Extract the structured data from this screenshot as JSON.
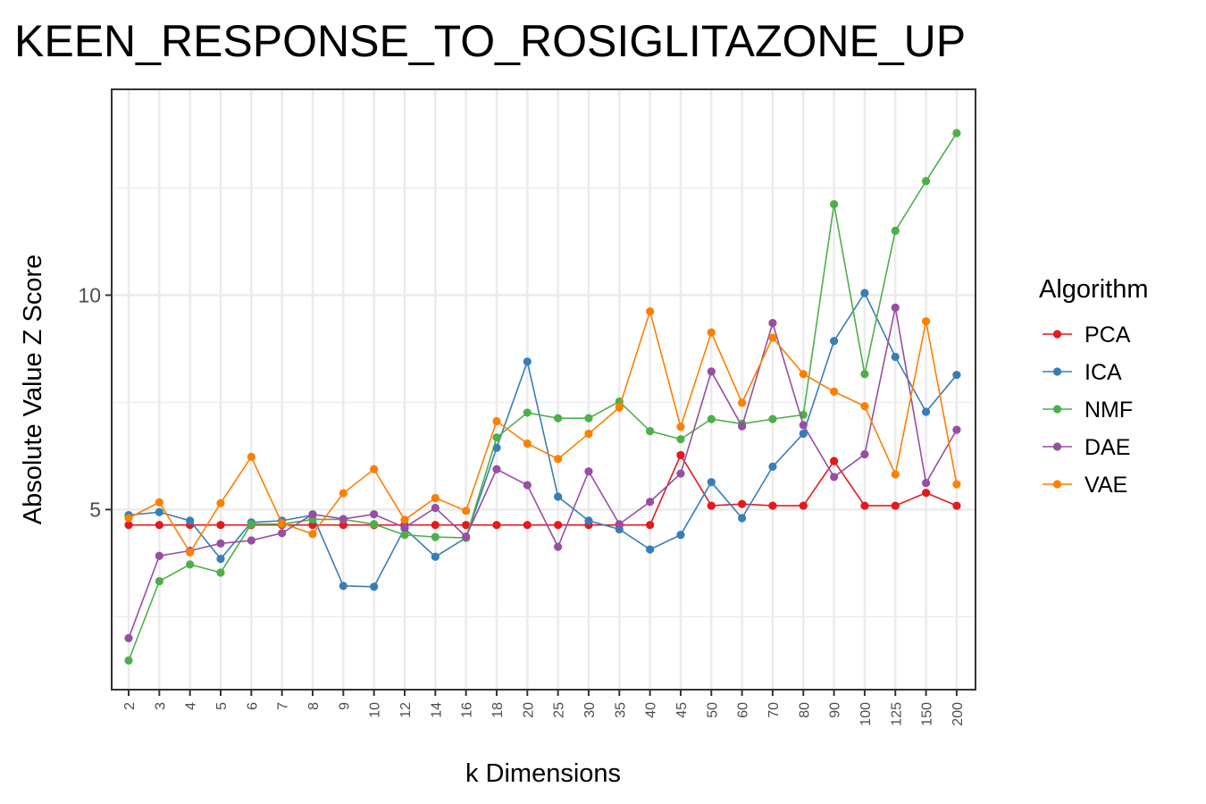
{
  "chart_data": {
    "type": "line",
    "title": "KEEN_RESPONSE_TO_ROSIGLITAZONE_UP",
    "xlabel": "k Dimensions",
    "ylabel": "Absolute Value Z Score",
    "ylim": [
      0.8,
      14.8
    ],
    "yticks": [
      5,
      10
    ],
    "grid": true,
    "legend": {
      "title": "Algorithm",
      "position": "right"
    },
    "categories": [
      "2",
      "3",
      "4",
      "5",
      "6",
      "7",
      "8",
      "9",
      "10",
      "12",
      "14",
      "16",
      "18",
      "20",
      "25",
      "30",
      "35",
      "40",
      "45",
      "50",
      "60",
      "70",
      "80",
      "90",
      "100",
      "125",
      "150",
      "200"
    ],
    "series": [
      {
        "name": "PCA",
        "color": "#E41A1C",
        "values": [
          4.64,
          4.64,
          4.64,
          4.64,
          4.64,
          4.64,
          4.64,
          4.64,
          4.64,
          4.64,
          4.64,
          4.64,
          4.64,
          4.64,
          4.64,
          4.64,
          4.64,
          4.64,
          6.27,
          5.09,
          5.13,
          5.09,
          5.09,
          6.13,
          5.09,
          5.09,
          5.39,
          5.09
        ]
      },
      {
        "name": "ICA",
        "color": "#377EB8",
        "values": [
          4.87,
          4.94,
          4.74,
          3.85,
          4.7,
          4.74,
          4.87,
          3.22,
          3.2,
          4.56,
          3.9,
          4.34,
          6.44,
          8.45,
          5.3,
          4.74,
          4.54,
          4.07,
          4.41,
          5.64,
          4.8,
          6.0,
          6.77,
          8.93,
          10.05,
          8.56,
          7.28,
          8.14
        ]
      },
      {
        "name": "NMF",
        "color": "#4DAF4A",
        "values": [
          1.48,
          3.33,
          3.72,
          3.53,
          4.66,
          4.66,
          4.77,
          4.77,
          4.66,
          4.41,
          4.36,
          4.34,
          6.68,
          7.26,
          7.13,
          7.13,
          7.52,
          6.83,
          6.64,
          7.11,
          7.0,
          7.11,
          7.21,
          12.12,
          8.16,
          11.5,
          12.66,
          13.78
        ]
      },
      {
        "name": "DAE",
        "color": "#984EA3",
        "values": [
          2.0,
          3.92,
          4.04,
          4.21,
          4.28,
          4.45,
          4.89,
          4.78,
          4.89,
          4.58,
          5.04,
          4.37,
          5.94,
          5.57,
          4.13,
          5.89,
          4.66,
          5.18,
          5.84,
          8.22,
          6.94,
          9.35,
          6.97,
          5.76,
          6.29,
          9.71,
          5.62,
          6.86
        ]
      },
      {
        "name": "VAE",
        "color": "#FF7F00",
        "values": [
          4.8,
          5.17,
          4.0,
          5.15,
          6.23,
          4.68,
          4.43,
          5.38,
          5.94,
          4.76,
          5.27,
          4.97,
          7.06,
          6.54,
          6.18,
          6.77,
          7.38,
          9.62,
          6.93,
          9.13,
          7.49,
          9.01,
          8.16,
          7.75,
          7.41,
          5.82,
          9.39,
          5.59
        ]
      }
    ]
  }
}
